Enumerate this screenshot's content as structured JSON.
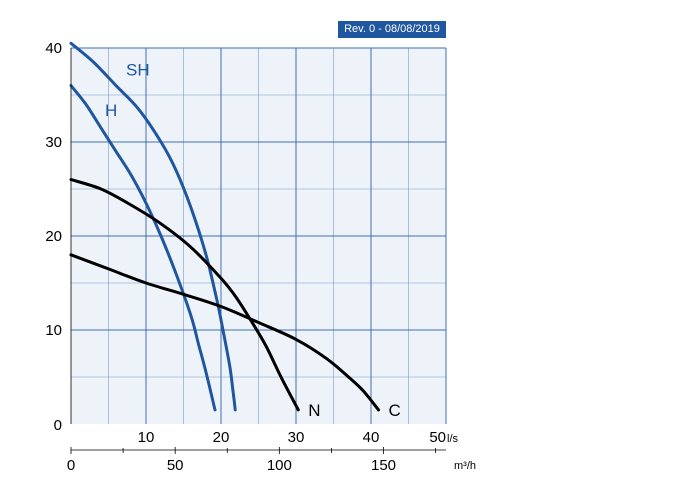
{
  "revision_badge": "Rev. 0 - 08/08/2019",
  "chart_data": {
    "type": "line",
    "xlabel": "",
    "ylabel": "",
    "x_unit": "l/s",
    "secondary_x_unit": "m³/h",
    "xlim": [
      0,
      50
    ],
    "ylim": [
      0,
      40
    ],
    "x_ticks": [
      "10",
      "20",
      "30",
      "40",
      "50"
    ],
    "y_ticks": [
      "0",
      "10",
      "20",
      "30",
      "40"
    ],
    "secondary_x_ticks": [
      "0",
      "50",
      "100",
      "150"
    ],
    "grid": true,
    "colors": {
      "grid": "#2e61a8",
      "plot_bg": "#eef3fa",
      "blue_series": "#1f56a0",
      "black_series": "#000000"
    },
    "series": [
      {
        "name": "SH",
        "color": "#1f56a0",
        "x": [
          0,
          3,
          6,
          9,
          12,
          14,
          16,
          18,
          19.5,
          20.5,
          21.2,
          21.6,
          21.9
        ],
        "y": [
          40.5,
          38.5,
          36,
          33.5,
          30,
          27,
          23,
          18,
          13,
          9,
          6,
          3.5,
          1.5
        ]
      },
      {
        "name": "H",
        "color": "#1f56a0",
        "x": [
          0,
          2,
          4,
          6,
          8,
          10,
          12,
          14,
          16,
          17,
          18,
          19.2
        ],
        "y": [
          36,
          34,
          31.5,
          29,
          26.5,
          23.5,
          20,
          16,
          11.5,
          8.5,
          5.5,
          1.5
        ]
      },
      {
        "name": "N",
        "color": "#000000",
        "x": [
          0,
          4,
          8,
          12,
          16,
          20,
          22,
          24,
          26,
          28,
          30.3
        ],
        "y": [
          26,
          25,
          23.3,
          21.3,
          18.8,
          15.5,
          13.5,
          11,
          8.3,
          5,
          1.5
        ]
      },
      {
        "name": "C",
        "color": "#000000",
        "x": [
          0,
          5,
          10,
          15,
          20,
          25,
          30,
          34,
          37,
          39,
          41
        ],
        "y": [
          18,
          16.5,
          15,
          13.8,
          12.5,
          10.8,
          9,
          7,
          5,
          3.5,
          1.5
        ]
      }
    ]
  }
}
